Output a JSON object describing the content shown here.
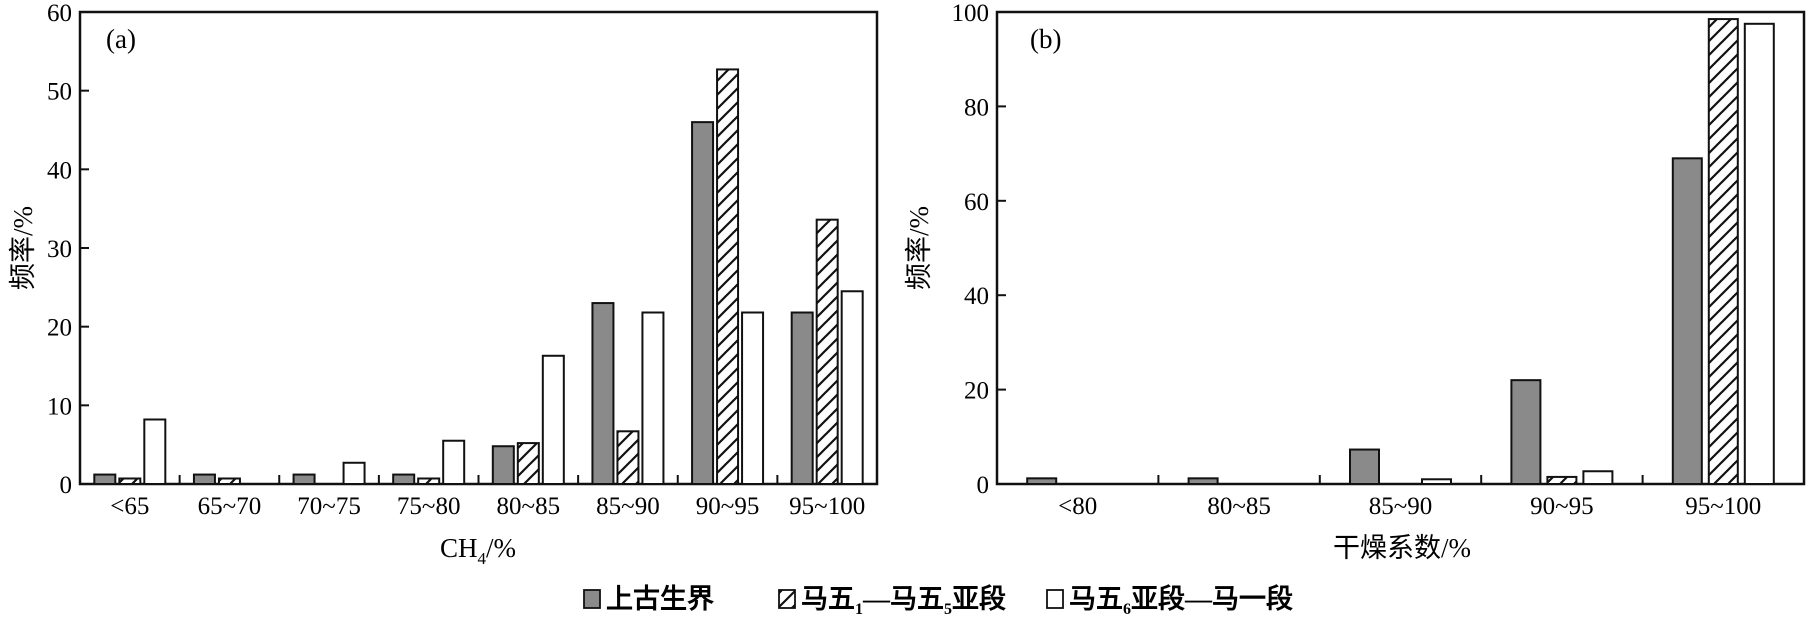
{
  "chart_data": [
    {
      "type": "bar",
      "panel_label": "(a)",
      "categories": [
        "<65",
        "65~70",
        "70~75",
        "75~80",
        "80~85",
        "85~90",
        "90~95",
        "95~100"
      ],
      "series": [
        {
          "name": "上古生界",
          "values": [
            1.2,
            1.2,
            1.2,
            1.2,
            4.8,
            23,
            46,
            21.8
          ]
        },
        {
          "name": "马五1—马五5亚段",
          "values": [
            0.7,
            0.7,
            0,
            0.7,
            5.2,
            6.7,
            52.7,
            33.6
          ]
        },
        {
          "name": "马五6亚段—马一段",
          "values": [
            8.2,
            0,
            2.7,
            5.5,
            16.3,
            21.8,
            21.8,
            24.5
          ]
        }
      ],
      "xlabel": "CH4/%",
      "ylabel": "频率/%",
      "ylim": [
        0,
        60
      ],
      "yticks": [
        0,
        10,
        20,
        30,
        40,
        50,
        60
      ],
      "grid": false
    },
    {
      "type": "bar",
      "panel_label": "(b)",
      "categories": [
        "<80",
        "80~85",
        "85~90",
        "90~95",
        "95~100"
      ],
      "series": [
        {
          "name": "上古生界",
          "values": [
            1.2,
            1.2,
            7.3,
            22,
            69
          ]
        },
        {
          "name": "马五1—马五5亚段",
          "values": [
            0,
            0,
            0,
            1.5,
            98.5
          ]
        },
        {
          "name": "马五6亚段—马一段",
          "values": [
            0,
            0,
            1,
            2.7,
            97.5
          ]
        }
      ],
      "xlabel": "干燥系数/%",
      "ylabel": "频率/%",
      "ylim": [
        0,
        100
      ],
      "yticks": [
        0,
        20,
        40,
        60,
        80,
        100
      ],
      "grid": false
    }
  ],
  "legend": {
    "placement": "bottom-center",
    "items": [
      {
        "label": "上古生界",
        "style": "gray-fill"
      },
      {
        "label": "马五1—马五5亚段",
        "style": "hatched"
      },
      {
        "label": "马五6亚段—马一段",
        "style": "white-fill"
      }
    ]
  },
  "colors": {
    "gray_fill": "#8a8a8a",
    "outline": "#111111",
    "white_fill": "#ffffff"
  }
}
